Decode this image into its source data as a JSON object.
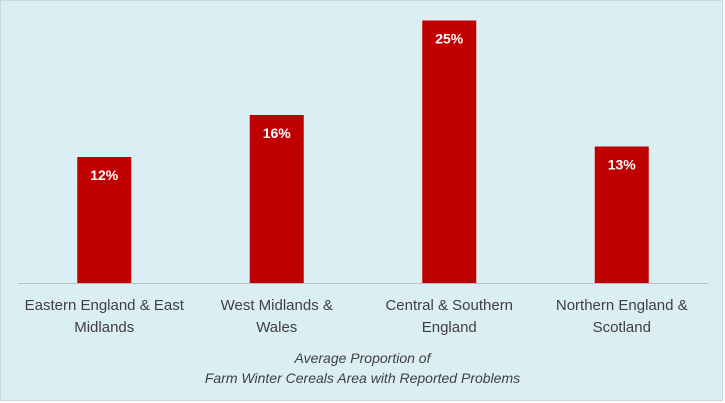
{
  "chart_data": {
    "type": "bar",
    "categories": [
      [
        "Eastern England & East",
        "Midlands"
      ],
      [
        "West Midlands &",
        "Wales"
      ],
      [
        "Central & Southern",
        "England"
      ],
      [
        "Northern England &",
        "Scotland"
      ]
    ],
    "values": [
      12,
      16,
      25,
      13
    ],
    "data_labels": [
      "12%",
      "16%",
      "25%",
      "13%"
    ],
    "xlabel": [
      "Average Proportion of",
      "Farm Winter Cereals Area with Reported Problems"
    ],
    "ylabel": "",
    "title": "",
    "ylim": [
      0,
      26
    ],
    "grid": false,
    "legend": "none",
    "bar_color": "#c00000",
    "background_color": "#daeef3",
    "axis_color": "#bfbfbf"
  }
}
